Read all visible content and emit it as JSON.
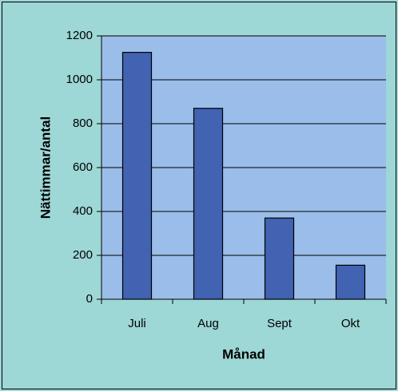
{
  "chart_data": {
    "type": "bar",
    "x_label": "Månad",
    "y_label": "Nättimmar/antal",
    "categories": [
      "Juli",
      "Aug",
      "Sept",
      "Okt"
    ],
    "values": [
      1125,
      870,
      370,
      155
    ],
    "color": "#4262b2",
    "ylim": [
      0,
      1200
    ],
    "yticks": [
      0,
      200,
      400,
      600,
      800,
      1000,
      1200
    ],
    "grid": true
  }
}
